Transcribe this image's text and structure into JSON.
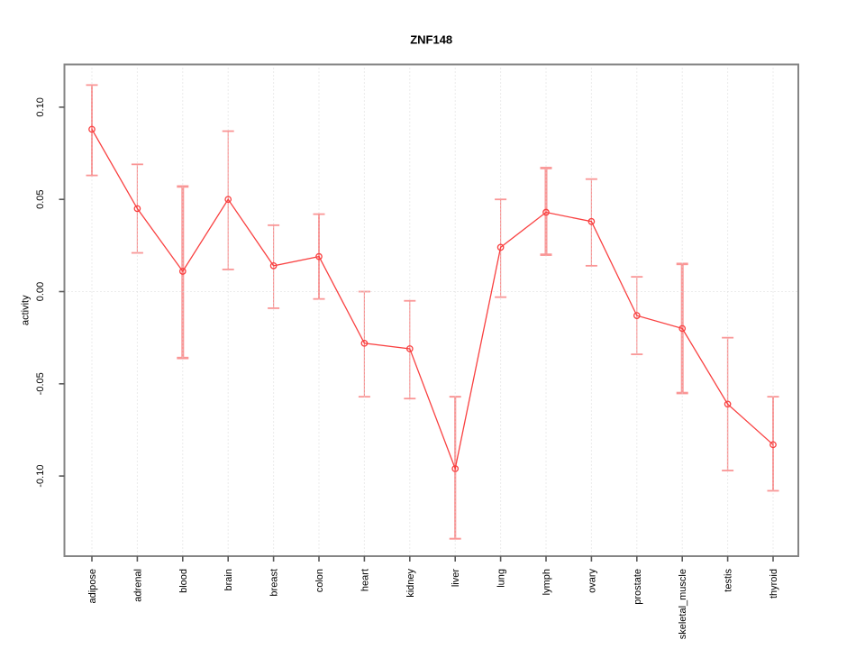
{
  "figure": {
    "background": "#FFFFFF"
  },
  "chart_data": {
    "type": "line",
    "title": "ZNF148",
    "ylabel": "activity",
    "categories": [
      "adipose",
      "adrenal",
      "blood",
      "brain",
      "breast",
      "colon",
      "heart",
      "kidney",
      "liver",
      "lung",
      "lymph",
      "ovary",
      "prostate",
      "skeletal_muscle",
      "testis",
      "thyroid"
    ],
    "series": [
      {
        "name": "activity",
        "values": [
          0.088,
          0.045,
          0.011,
          0.05,
          0.014,
          0.019,
          -0.028,
          -0.031,
          -0.096,
          0.024,
          0.043,
          0.038,
          -0.013,
          -0.02,
          -0.061,
          -0.083
        ],
        "lower": [
          0.063,
          0.021,
          -0.036,
          0.012,
          -0.009,
          -0.004,
          -0.057,
          -0.058,
          -0.134,
          -0.003,
          0.02,
          0.014,
          -0.034,
          -0.055,
          -0.097,
          -0.108
        ],
        "upper": [
          0.112,
          0.069,
          0.057,
          0.087,
          0.036,
          0.042,
          0.0,
          -0.005,
          -0.057,
          0.05,
          0.067,
          0.061,
          0.008,
          0.015,
          -0.025,
          -0.057
        ]
      }
    ],
    "error_bar_line_widths": [
      2,
      1.2,
      3,
      1.2,
      1.2,
      2,
      1.2,
      1.2,
      2.2,
      1.2,
      3,
      1.2,
      1.2,
      3,
      1.4,
      2
    ],
    "yticks": [
      -0.1,
      -0.05,
      0.0,
      0.05,
      0.1
    ],
    "ytick_labels": [
      "-0.10",
      "-0.05",
      "0.00",
      "0.05",
      "0.10"
    ],
    "ylim": [
      -0.143,
      0.123
    ],
    "grid": {
      "vertical_at_each_category": true,
      "horizontal_at_zero": true,
      "style": "dotted"
    },
    "legend": "none",
    "colors": {
      "line": "#F94040",
      "point": "#F94040",
      "error_bar": "#FA9696",
      "grid": "#D8D8D8",
      "frame": "#858585",
      "tick": "#595959",
      "text": "#000000"
    }
  }
}
